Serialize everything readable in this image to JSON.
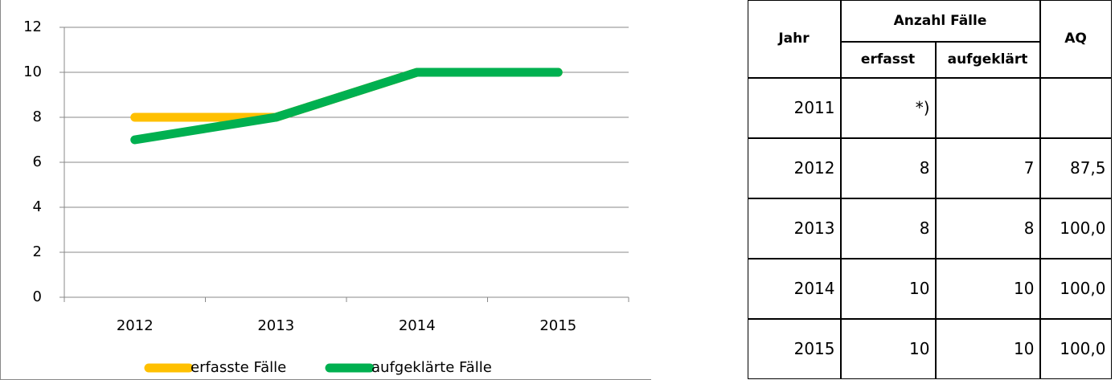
{
  "chart_data": {
    "type": "line",
    "categories": [
      "2012",
      "2013",
      "2014",
      "2015"
    ],
    "series": [
      {
        "name": "erfasste Fälle",
        "color": "#ffc000",
        "values": [
          8,
          8,
          10,
          10
        ]
      },
      {
        "name": "aufgeklärte Fälle",
        "color": "#00b050",
        "values": [
          7,
          8,
          10,
          10
        ]
      }
    ],
    "ylim": [
      0,
      12
    ],
    "yticks": [
      0,
      2,
      4,
      6,
      8,
      10,
      12
    ],
    "grid": true,
    "legend": "bottom"
  },
  "table": {
    "header": {
      "year": "Jahr",
      "group": "Anzahl Fälle",
      "recorded": "erfasst",
      "solved": "aufgeklärt",
      "rate": "AQ"
    },
    "rows": [
      [
        "2011",
        "*)",
        null,
        null
      ],
      [
        "2012",
        8,
        7,
        "87,5"
      ],
      [
        "2013",
        8,
        8,
        "100,0"
      ],
      [
        "2014",
        10,
        10,
        "100,0"
      ],
      [
        "2015",
        10,
        10,
        "100,0"
      ]
    ]
  }
}
